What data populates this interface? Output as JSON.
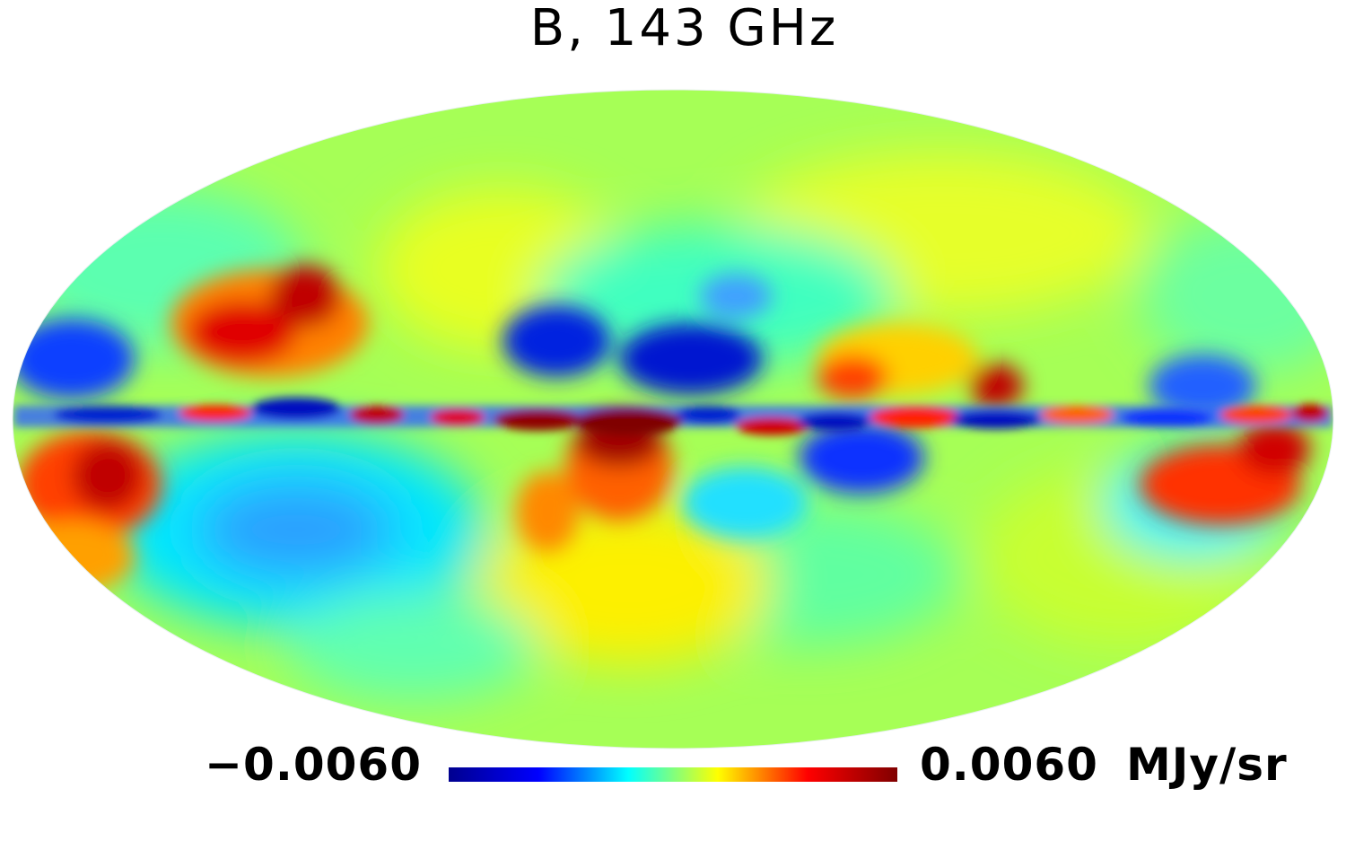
{
  "title": "B, 143 GHz",
  "projection": "mollweide",
  "colormap": "jet",
  "colorbar": {
    "min_label": "−0.0060",
    "max_label": "0.0060",
    "unit": "MJy/sr",
    "min": -0.006,
    "max": 0.006,
    "colors": [
      "#00008f",
      "#0000ff",
      "#00ffff",
      "#ffff00",
      "#ff0000",
      "#800000"
    ]
  }
}
